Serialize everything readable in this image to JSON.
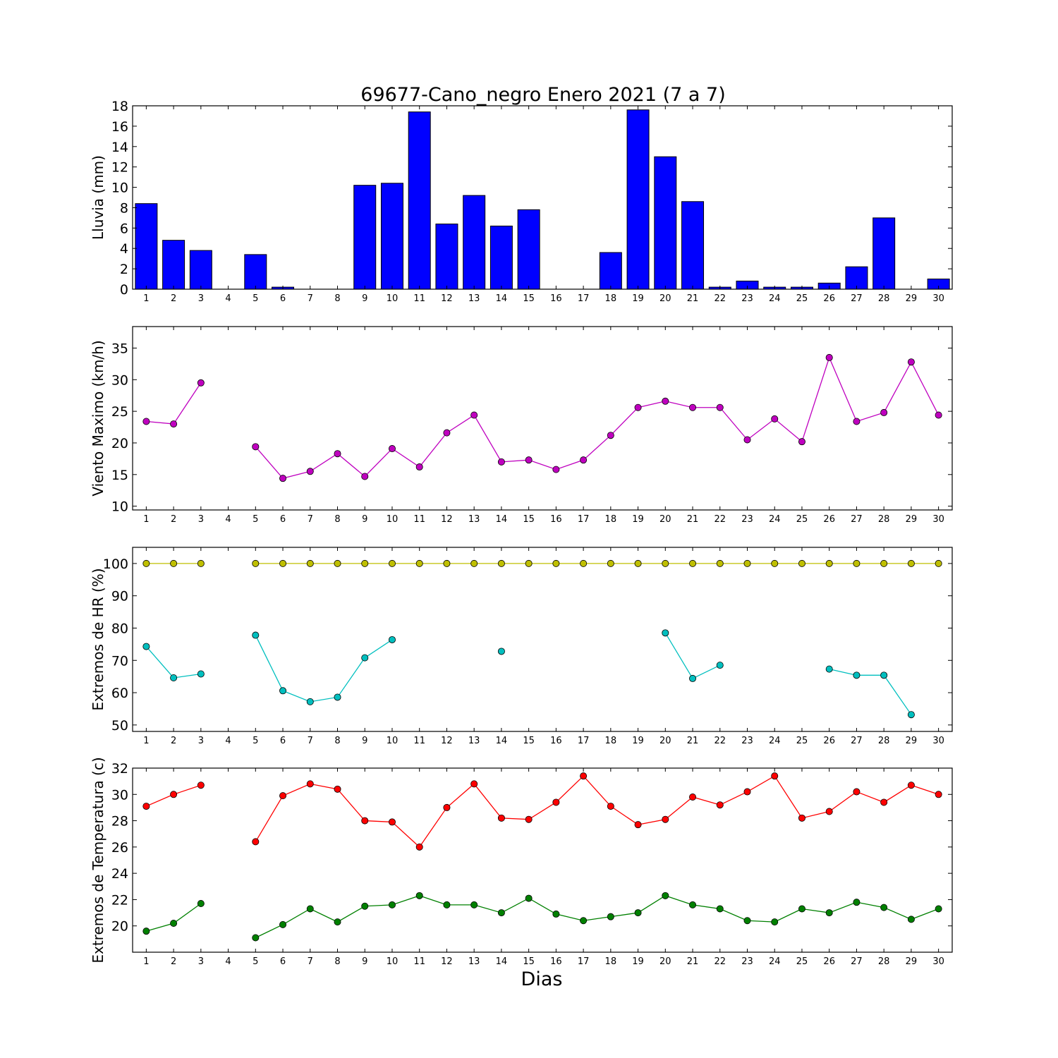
{
  "title": "69677-Cano_negro Enero 2021  (7 a 7)",
  "xlabel": "Dias",
  "days": [
    1,
    2,
    3,
    4,
    5,
    6,
    7,
    8,
    9,
    10,
    11,
    12,
    13,
    14,
    15,
    16,
    17,
    18,
    19,
    20,
    21,
    22,
    23,
    24,
    25,
    26,
    27,
    28,
    29,
    30
  ],
  "chart_data": [
    {
      "id": "lluvia",
      "type": "bar",
      "ylabel": "Lluvia (mm)",
      "ylim": [
        0,
        18
      ],
      "yticks": [
        0,
        2,
        4,
        6,
        8,
        10,
        12,
        14,
        16,
        18
      ],
      "grid": false,
      "series": [
        {
          "color": "#0000ff",
          "values": [
            8.4,
            4.8,
            3.8,
            0,
            3.4,
            0.2,
            0,
            0,
            10.2,
            10.4,
            17.4,
            6.4,
            9.2,
            6.2,
            7.8,
            0,
            0,
            3.6,
            17.6,
            13.0,
            8.6,
            0.2,
            0.8,
            0.2,
            0.2,
            0.6,
            2.2,
            7.0,
            0,
            1.0
          ]
        }
      ]
    },
    {
      "id": "viento",
      "type": "line",
      "ylabel": "Viento Maximo (km/h)",
      "ylim": [
        9.4,
        38.4
      ],
      "yticks": [
        10,
        15,
        20,
        25,
        30,
        35
      ],
      "grid": false,
      "series": [
        {
          "color": "#bf00bf",
          "values": [
            23.4,
            23.0,
            29.5,
            null,
            19.4,
            14.4,
            15.5,
            18.3,
            14.7,
            19.1,
            16.2,
            21.6,
            24.4,
            17.0,
            17.3,
            15.8,
            17.3,
            21.2,
            25.6,
            26.6,
            25.6,
            25.6,
            20.5,
            23.8,
            20.2,
            33.5,
            23.4,
            24.8,
            32.8,
            24.4
          ]
        }
      ]
    },
    {
      "id": "hr",
      "type": "line",
      "ylabel": "Extremos de HR (%)",
      "ylim": [
        48,
        105
      ],
      "yticks": [
        50,
        60,
        70,
        80,
        90,
        100
      ],
      "grid": false,
      "series": [
        {
          "color": "#bfbf00",
          "values": [
            100,
            100,
            100,
            null,
            100,
            100,
            100,
            100,
            100,
            100,
            100,
            100,
            100,
            100,
            100,
            100,
            100,
            100,
            100,
            100,
            100,
            100,
            100,
            100,
            100,
            100,
            100,
            100,
            100,
            100
          ]
        },
        {
          "color": "#00bfbf",
          "values": [
            74.3,
            64.6,
            65.8,
            null,
            77.8,
            60.6,
            57.2,
            58.6,
            70.8,
            76.4,
            null,
            null,
            null,
            72.8,
            null,
            null,
            null,
            null,
            null,
            78.5,
            64.4,
            68.5,
            null,
            null,
            null,
            67.3,
            65.4,
            65.4,
            53.2,
            null
          ]
        }
      ]
    },
    {
      "id": "temperatura",
      "type": "line",
      "ylabel": "Extremos de Temperatura (c)",
      "ylim": [
        18,
        32
      ],
      "yticks": [
        20,
        22,
        24,
        26,
        28,
        30,
        32
      ],
      "grid": false,
      "series": [
        {
          "color": "#ff0000",
          "values": [
            29.1,
            30.0,
            30.7,
            null,
            26.4,
            29.9,
            30.8,
            30.4,
            28.0,
            27.9,
            26.0,
            29.0,
            30.8,
            28.2,
            28.1,
            29.4,
            31.4,
            29.1,
            27.7,
            28.1,
            29.8,
            29.2,
            30.2,
            31.4,
            28.2,
            28.7,
            30.2,
            29.4,
            30.7,
            30.0
          ]
        },
        {
          "color": "#008000",
          "values": [
            19.6,
            20.2,
            21.7,
            null,
            19.1,
            20.1,
            21.3,
            20.3,
            21.5,
            21.6,
            22.3,
            21.6,
            21.6,
            21.0,
            22.1,
            20.9,
            20.4,
            20.7,
            21.0,
            22.3,
            21.6,
            21.3,
            20.4,
            20.3,
            21.3,
            21.0,
            21.8,
            21.4,
            20.5,
            21.3
          ]
        }
      ]
    }
  ]
}
